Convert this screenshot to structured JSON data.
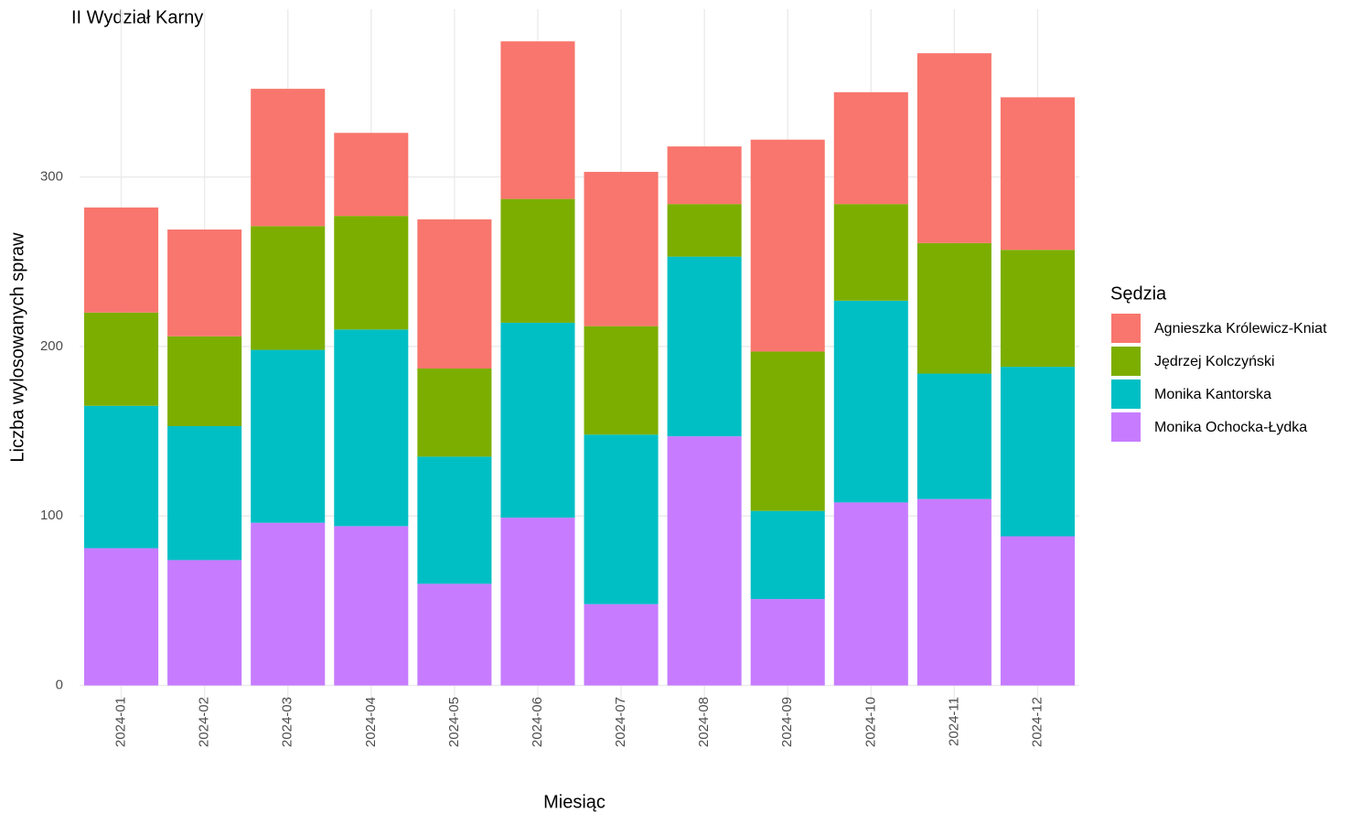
{
  "chart_data": {
    "type": "stacked_bar",
    "title": "II Wydział Karny",
    "x_label": "Miesiąc",
    "y_label": "Liczba wylosowanych spraw",
    "legend_title": "Sędzia",
    "legend_position": "right",
    "categories": [
      "2024-01",
      "2024-02",
      "2024-03",
      "2024-04",
      "2024-05",
      "2024-06",
      "2024-07",
      "2024-08",
      "2024-09",
      "2024-10",
      "2024-11",
      "2024-12"
    ],
    "series": [
      {
        "name": "Agnieszka Królewicz-Kniat",
        "color": "#F8766D",
        "values": [
          62,
          63,
          81,
          49,
          88,
          93,
          91,
          34,
          125,
          66,
          112,
          90
        ]
      },
      {
        "name": "Jędrzej Kolczyński",
        "color": "#7CAE00",
        "values": [
          55,
          53,
          73,
          67,
          52,
          73,
          64,
          31,
          94,
          57,
          77,
          69
        ]
      },
      {
        "name": "Monika Kantorska",
        "color": "#00BFC4",
        "values": [
          84,
          79,
          102,
          116,
          75,
          115,
          100,
          106,
          52,
          119,
          74,
          100
        ]
      },
      {
        "name": "Monika Ochocka-Łydka",
        "color": "#C77CFF",
        "values": [
          81,
          74,
          96,
          94,
          60,
          99,
          48,
          147,
          51,
          108,
          110,
          88
        ]
      }
    ],
    "ylim": [
      -11,
      399
    ],
    "yticks": [
      0,
      100,
      200,
      300
    ],
    "grid": true
  }
}
